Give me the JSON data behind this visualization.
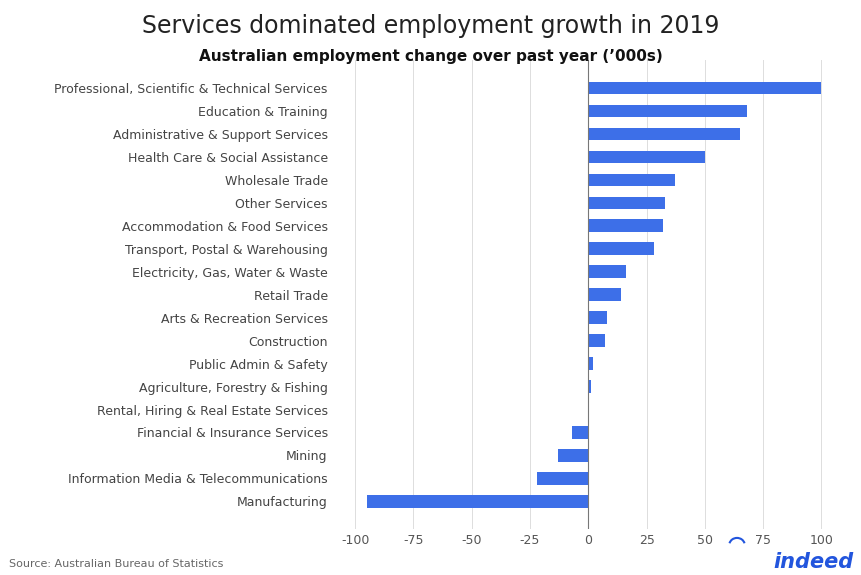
{
  "title": "Services dominated employment growth in 2019",
  "subtitle": "Australian employment change over past year (’000s)",
  "source": "Source: Australian Bureau of Statistics",
  "categories": [
    "Professional, Scientific & Technical Services",
    "Education & Training",
    "Administrative & Support Services",
    "Health Care & Social Assistance",
    "Wholesale Trade",
    "Other Services",
    "Accommodation & Food Services",
    "Transport, Postal & Warehousing",
    "Electricity, Gas, Water & Waste",
    "Retail Trade",
    "Arts & Recreation Services",
    "Construction",
    "Public Admin & Safety",
    "Agriculture, Forestry & Fishing",
    "Rental, Hiring & Real Estate Services",
    "Financial & Insurance Services",
    "Mining",
    "Information Media & Telecommunications",
    "Manufacturing"
  ],
  "values": [
    100,
    68,
    65,
    50,
    37,
    33,
    32,
    28,
    16,
    14,
    8,
    7,
    2,
    1,
    0.5,
    -7,
    -13,
    -22,
    -95
  ],
  "bar_color": "#3d6fe8",
  "background_color": "#ffffff",
  "xlim": [
    -110,
    110
  ],
  "xticks": [
    -100,
    -75,
    -50,
    -25,
    0,
    25,
    50,
    75,
    100
  ],
  "title_fontsize": 17,
  "subtitle_fontsize": 11,
  "label_fontsize": 9,
  "tick_fontsize": 9,
  "source_fontsize": 8,
  "indeed_fontsize": 15
}
